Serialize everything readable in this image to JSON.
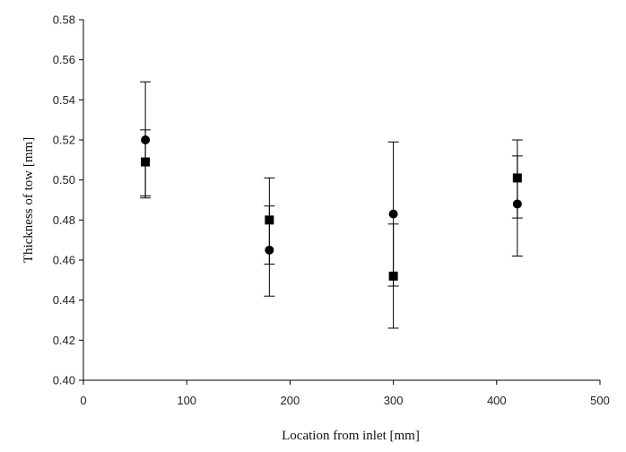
{
  "chart_data": {
    "type": "scatter",
    "title": "",
    "xlabel": "Location from inlet [mm]",
    "ylabel": "Thickness of tow [mm]",
    "xlim": [
      0,
      500
    ],
    "ylim": [
      0.4,
      0.58
    ],
    "x_ticks": [
      "0",
      "100",
      "200",
      "300",
      "400",
      "500"
    ],
    "y_ticks": [
      "0.40",
      "0.42",
      "0.44",
      "0.46",
      "0.48",
      "0.50",
      "0.52",
      "0.54",
      "0.56",
      "0.58"
    ],
    "grid": false,
    "legend": "none",
    "series": [
      {
        "marker": "circle",
        "color": "#000000",
        "points": [
          {
            "x": 60,
            "y": 0.52,
            "err_low": 0.491,
            "err_high": 0.549
          },
          {
            "x": 180,
            "y": 0.465,
            "err_low": 0.442,
            "err_high": 0.487
          },
          {
            "x": 300,
            "y": 0.483,
            "err_low": 0.447,
            "err_high": 0.519
          },
          {
            "x": 420,
            "y": 0.488,
            "err_low": 0.462,
            "err_high": 0.512
          }
        ]
      },
      {
        "marker": "square",
        "color": "#000000",
        "points": [
          {
            "x": 60,
            "y": 0.509,
            "err_low": 0.492,
            "err_high": 0.525
          },
          {
            "x": 180,
            "y": 0.48,
            "err_low": 0.458,
            "err_high": 0.501
          },
          {
            "x": 300,
            "y": 0.452,
            "err_low": 0.426,
            "err_high": 0.478
          },
          {
            "x": 420,
            "y": 0.501,
            "err_low": 0.481,
            "err_high": 0.52
          }
        ]
      }
    ]
  }
}
